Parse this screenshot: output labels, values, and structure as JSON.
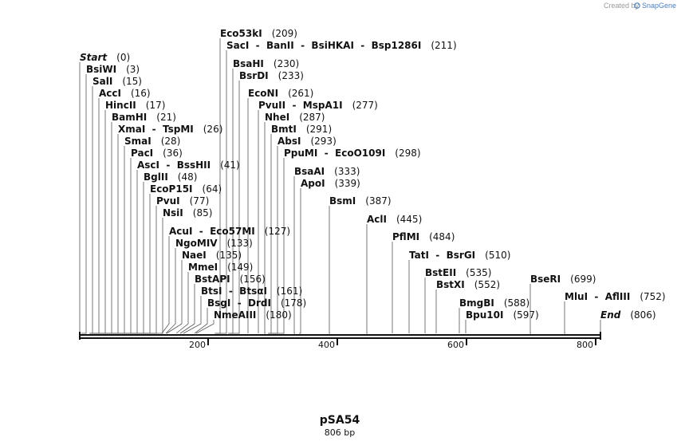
{
  "header": {
    "created_by": "Created by",
    "brand": "SnapGene"
  },
  "plasmid": {
    "name": "pSA54",
    "length_label": "806 bp",
    "length": 806
  },
  "axis": {
    "ticks": [
      "200",
      "400",
      "600",
      "800"
    ]
  },
  "sites": [
    {
      "name": "Start",
      "pos": 0,
      "pos_label": "(0)"
    },
    {
      "name": "BsiWI",
      "pos": 3,
      "pos_label": "(3)"
    },
    {
      "name": "SalI",
      "pos": 15,
      "pos_label": "(15)"
    },
    {
      "name": "AccI",
      "pos": 16,
      "pos_label": "(16)"
    },
    {
      "name": "HincII",
      "pos": 17,
      "pos_label": "(17)"
    },
    {
      "name": "BamHI",
      "pos": 21,
      "pos_label": "(21)"
    },
    {
      "name": "XmaI  -  TspMI",
      "pos": 26,
      "pos_label": "(26)"
    },
    {
      "name": "SmaI",
      "pos": 28,
      "pos_label": "(28)"
    },
    {
      "name": "PacI",
      "pos": 36,
      "pos_label": "(36)"
    },
    {
      "name": "AscI  -  BssHII",
      "pos": 41,
      "pos_label": "(41)"
    },
    {
      "name": "BglII",
      "pos": 48,
      "pos_label": "(48)"
    },
    {
      "name": "EcoP15I",
      "pos": 64,
      "pos_label": "(64)"
    },
    {
      "name": "PvuI",
      "pos": 77,
      "pos_label": "(77)"
    },
    {
      "name": "NsiI",
      "pos": 85,
      "pos_label": "(85)"
    },
    {
      "name": "AcuI  -  Eco57MI",
      "pos": 127,
      "pos_label": "(127)"
    },
    {
      "name": "NgoMIV",
      "pos": 133,
      "pos_label": "(133)"
    },
    {
      "name": "NaeI",
      "pos": 135,
      "pos_label": "(135)"
    },
    {
      "name": "MmeI",
      "pos": 149,
      "pos_label": "(149)"
    },
    {
      "name": "BstAPI",
      "pos": 156,
      "pos_label": "(156)"
    },
    {
      "name": "BtsI  -  BtsαI",
      "pos": 161,
      "pos_label": "(161)"
    },
    {
      "name": "BsgI  -  DrdI",
      "pos": 178,
      "pos_label": "(178)"
    },
    {
      "name": "NmeAIII",
      "pos": 180,
      "pos_label": "(180)"
    },
    {
      "name": "Eco53kI",
      "pos": 209,
      "pos_label": "(209)"
    },
    {
      "name": "SacI  -  BanII  -  BsiHKAI  -  Bsp1286I",
      "pos": 211,
      "pos_label": "(211)"
    },
    {
      "name": "BsaHI",
      "pos": 230,
      "pos_label": "(230)"
    },
    {
      "name": "BsrDI",
      "pos": 233,
      "pos_label": "(233)"
    },
    {
      "name": "EcoNI",
      "pos": 261,
      "pos_label": "(261)"
    },
    {
      "name": "PvuII  -  MspA1I",
      "pos": 277,
      "pos_label": "(277)"
    },
    {
      "name": "NheI",
      "pos": 287,
      "pos_label": "(287)"
    },
    {
      "name": "BmtI",
      "pos": 291,
      "pos_label": "(291)"
    },
    {
      "name": "AbsI",
      "pos": 293,
      "pos_label": "(293)"
    },
    {
      "name": "PpuMI  -  EcoO109I",
      "pos": 298,
      "pos_label": "(298)"
    },
    {
      "name": "BsaAI",
      "pos": 333,
      "pos_label": "(333)"
    },
    {
      "name": "ApoI",
      "pos": 339,
      "pos_label": "(339)"
    },
    {
      "name": "BsmI",
      "pos": 387,
      "pos_label": "(387)"
    },
    {
      "name": "AclI",
      "pos": 445,
      "pos_label": "(445)"
    },
    {
      "name": "PflMI",
      "pos": 484,
      "pos_label": "(484)"
    },
    {
      "name": "TatI  -  BsrGI",
      "pos": 510,
      "pos_label": "(510)"
    },
    {
      "name": "BstEII",
      "pos": 535,
      "pos_label": "(535)"
    },
    {
      "name": "BstXI",
      "pos": 552,
      "pos_label": "(552)"
    },
    {
      "name": "BmgBI",
      "pos": 588,
      "pos_label": "(588)"
    },
    {
      "name": "Bpu10I",
      "pos": 597,
      "pos_label": "(597)"
    },
    {
      "name": "BseRI",
      "pos": 699,
      "pos_label": "(699)"
    },
    {
      "name": "MluI  -  AflIII",
      "pos": 752,
      "pos_label": "(752)"
    },
    {
      "name": "End",
      "pos": 806,
      "pos_label": "(806)"
    }
  ]
}
